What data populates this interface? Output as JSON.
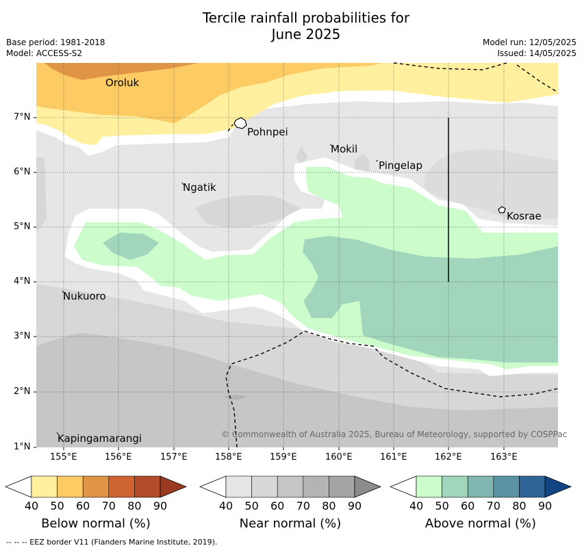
{
  "title_line1": "Tercile rainfall probabilities for",
  "title_line2": "June 2025",
  "base_period": "Base period: 1981-2018",
  "model": "Model: ACCESS-S2",
  "model_run": "Model run: 12/05/2025",
  "issued": "Issued: 14/05/2025",
  "copyright": "© Commonwealth of Australia 2025, Bureau of Meteorology, supported by COSPPac",
  "footnote": "--  --  -- EEZ border V11 (Flanders Marine Institute, 2019).",
  "places": {
    "oroluk": "Oroluk",
    "pohnpei": "Pohnpei",
    "mokil": "Mokil",
    "pingelap": "Pingelap",
    "ngatik": "Ngatik",
    "kosrae": "Kosrae",
    "nukuoro": "Nukuoro",
    "kapingamarangi": "Kapingamarangi"
  },
  "lat_ticks": [
    "7°N",
    "6°N",
    "5°N",
    "4°N",
    "3°N",
    "2°N",
    "1°N"
  ],
  "lon_ticks": [
    "155°E",
    "156°E",
    "157°E",
    "158°E",
    "159°E",
    "160°E",
    "161°E",
    "162°E",
    "163°E"
  ],
  "colorbars": {
    "below": {
      "label": "Below normal (%)",
      "ticks": [
        "40",
        "50",
        "60",
        "70",
        "80",
        "90"
      ],
      "colors": [
        "#fff0a0",
        "#fdcb64",
        "#e09446",
        "#cd6432",
        "#b24c2a",
        "#9a3a22"
      ]
    },
    "near": {
      "label": "Near normal (%)",
      "ticks": [
        "40",
        "50",
        "60",
        "70",
        "80",
        "90"
      ],
      "colors": [
        "#e6e6e6",
        "#d7d7d7",
        "#c6c6c6",
        "#b4b4b4",
        "#a4a4a4",
        "#8c8c8c"
      ]
    },
    "above": {
      "label": "Above normal (%)",
      "ticks": [
        "40",
        "50",
        "60",
        "70",
        "80",
        "90"
      ],
      "colors": [
        "#ccfccc",
        "#a2d6bc",
        "#82b6b0",
        "#5a94a4",
        "#2e6496",
        "#114682"
      ]
    }
  }
}
